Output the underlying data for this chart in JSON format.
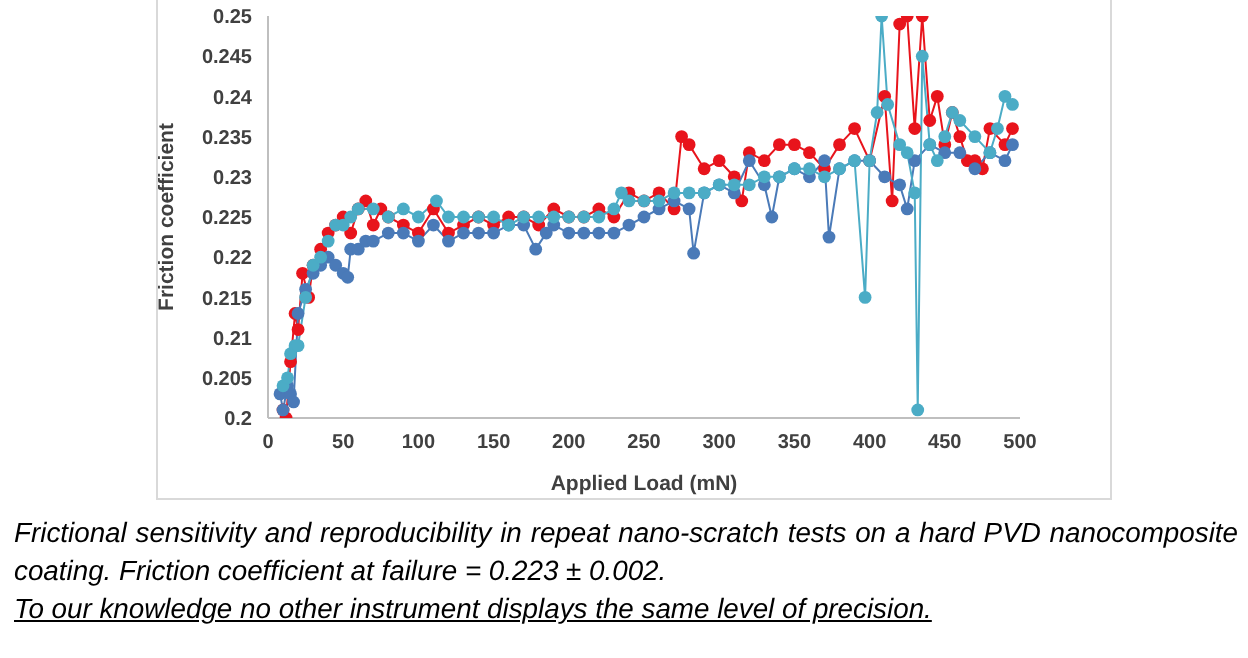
{
  "chart_data": {
    "type": "line",
    "xlabel": "Applied Load (mN)",
    "ylabel": "Friction coefficient",
    "xlim": [
      0,
      500
    ],
    "xticks": [
      0,
      50,
      100,
      150,
      200,
      250,
      300,
      350,
      400,
      450,
      500
    ],
    "ylim": [
      0.2,
      0.25
    ],
    "yticks": [
      0.2,
      0.205,
      0.21,
      0.215,
      0.22,
      0.225,
      0.23,
      0.235,
      0.24,
      0.245,
      0.25
    ],
    "marker": "circle",
    "line_style": "solid",
    "grid": false,
    "annotations": [
      "Frictional sensitivity and reproducibility in repeat nano-scratch tests on a hard PVD nanocomposite coating. Friction coefficient at failure = 0.223 ± 0.002.",
      "To our knowledge no other instrument displays the same level of precision."
    ],
    "series": [
      {
        "color": "#e8141c",
        "x": [
          10,
          12,
          15,
          18,
          20,
          23,
          27,
          30,
          35,
          40,
          45,
          50,
          55,
          60,
          65,
          70,
          75,
          80,
          90,
          100,
          110,
          120,
          130,
          140,
          150,
          160,
          170,
          180,
          190,
          200,
          210,
          220,
          230,
          240,
          250,
          260,
          270,
          275,
          280,
          290,
          300,
          310,
          315,
          320,
          330,
          340,
          350,
          360,
          370,
          380,
          390,
          400,
          410,
          415,
          420,
          425,
          430,
          435,
          440,
          445,
          450,
          455,
          460,
          465,
          470,
          475,
          480,
          490,
          495
        ],
        "values": [
          0.201,
          0.2,
          0.207,
          0.213,
          0.211,
          0.218,
          0.215,
          0.219,
          0.221,
          0.223,
          0.224,
          0.225,
          0.223,
          0.226,
          0.227,
          0.224,
          0.226,
          0.225,
          0.224,
          0.223,
          0.226,
          0.223,
          0.224,
          0.225,
          0.224,
          0.225,
          0.225,
          0.224,
          0.226,
          0.225,
          0.225,
          0.226,
          0.225,
          0.228,
          0.227,
          0.228,
          0.226,
          0.235,
          0.234,
          0.231,
          0.232,
          0.23,
          0.227,
          0.233,
          0.232,
          0.234,
          0.234,
          0.233,
          0.231,
          0.234,
          0.236,
          0.232,
          0.24,
          0.227,
          0.249,
          0.25,
          0.236,
          0.25,
          0.237,
          0.24,
          0.234,
          0.238,
          0.235,
          0.232,
          0.232,
          0.231,
          0.236,
          0.234,
          0.236
        ]
      },
      {
        "color": "#4a7ab8",
        "x": [
          8,
          10,
          13,
          15,
          17,
          20,
          25,
          30,
          35,
          40,
          45,
          50,
          53,
          55,
          60,
          65,
          70,
          80,
          90,
          100,
          110,
          120,
          130,
          140,
          150,
          160,
          170,
          178,
          185,
          190,
          200,
          210,
          220,
          230,
          240,
          250,
          260,
          270,
          280,
          283,
          290,
          300,
          310,
          320,
          330,
          335,
          340,
          350,
          360,
          370,
          373,
          380,
          390,
          400,
          410,
          420,
          425,
          430,
          440,
          450,
          460,
          470,
          480,
          490,
          495
        ],
        "values": [
          0.203,
          0.201,
          0.204,
          0.203,
          0.202,
          0.213,
          0.216,
          0.218,
          0.219,
          0.22,
          0.219,
          0.218,
          0.2175,
          0.221,
          0.221,
          0.222,
          0.222,
          0.223,
          0.223,
          0.222,
          0.224,
          0.222,
          0.223,
          0.223,
          0.223,
          0.224,
          0.224,
          0.221,
          0.223,
          0.224,
          0.223,
          0.223,
          0.223,
          0.223,
          0.224,
          0.225,
          0.226,
          0.227,
          0.226,
          0.2205,
          0.228,
          0.229,
          0.228,
          0.232,
          0.229,
          0.225,
          0.23,
          0.231,
          0.23,
          0.232,
          0.2225,
          0.231,
          0.232,
          0.232,
          0.23,
          0.229,
          0.226,
          0.232,
          0.234,
          0.233,
          0.233,
          0.231,
          0.233,
          0.232,
          0.234
        ]
      },
      {
        "color": "#4bacc6",
        "x": [
          10,
          13,
          15,
          18,
          20,
          25,
          30,
          35,
          40,
          45,
          50,
          55,
          60,
          70,
          80,
          90,
          100,
          112,
          120,
          130,
          140,
          150,
          160,
          170,
          180,
          190,
          200,
          210,
          220,
          230,
          235,
          240,
          250,
          260,
          270,
          280,
          290,
          300,
          310,
          320,
          330,
          340,
          350,
          360,
          370,
          380,
          390,
          397,
          400,
          405,
          408,
          412,
          420,
          425,
          430,
          432,
          435,
          440,
          445,
          450,
          455,
          460,
          470,
          480,
          485,
          490,
          495
        ],
        "values": [
          0.204,
          0.205,
          0.208,
          0.209,
          0.209,
          0.215,
          0.219,
          0.22,
          0.222,
          0.224,
          0.224,
          0.225,
          0.226,
          0.226,
          0.225,
          0.226,
          0.225,
          0.227,
          0.225,
          0.225,
          0.225,
          0.225,
          0.224,
          0.225,
          0.225,
          0.225,
          0.225,
          0.225,
          0.225,
          0.226,
          0.228,
          0.227,
          0.227,
          0.227,
          0.228,
          0.228,
          0.228,
          0.229,
          0.229,
          0.229,
          0.23,
          0.23,
          0.231,
          0.231,
          0.23,
          0.231,
          0.232,
          0.215,
          0.232,
          0.238,
          0.25,
          0.239,
          0.234,
          0.233,
          0.228,
          0.201,
          0.245,
          0.234,
          0.232,
          0.235,
          0.238,
          0.237,
          0.235,
          0.233,
          0.236,
          0.24,
          0.239
        ]
      }
    ]
  }
}
